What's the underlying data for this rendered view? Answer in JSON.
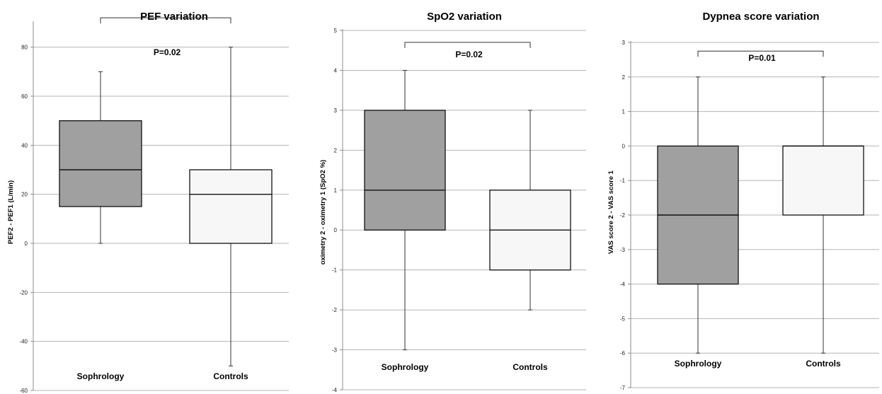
{
  "colors": {
    "sophrology": "#a0a0a0",
    "controls": "#f7f7f7",
    "grid": "#b5b5b5"
  },
  "chart_data": [
    {
      "type": "boxplot",
      "title": "PEF variation",
      "ylabel": "PEF2 - PEF1 (L/min)",
      "ylim": [
        -60,
        90
      ],
      "yticks": [
        -60,
        -40,
        -20,
        0,
        20,
        40,
        60,
        80
      ],
      "ytick_labels": [
        "-60",
        "-40",
        "-20",
        "0",
        "20",
        "40",
        "60",
        "80"
      ],
      "grid": true,
      "categories": [
        "Sophrology",
        "Controls"
      ],
      "boxes": [
        {
          "name": "Sophrology",
          "min": 0,
          "q1": 15,
          "median": 30,
          "q3": 50,
          "max": 70
        },
        {
          "name": "Controls",
          "min": -50,
          "q1": 0,
          "median": 20,
          "q3": 30,
          "max": 80
        }
      ],
      "annotation": {
        "text": "P=0.02",
        "bracket_level": 92
      }
    },
    {
      "type": "boxplot",
      "title": "SpO2 variation",
      "ylabel": "oximetry 2 - oximetry 1 (SpO2 %)",
      "ylim": [
        -4,
        5
      ],
      "yticks": [
        -4,
        -3,
        -2,
        -1,
        0,
        1,
        2,
        3,
        4,
        5
      ],
      "ytick_labels": [
        "-4",
        "-3",
        "-2",
        "-1",
        "0",
        "1",
        "2",
        "3",
        "4",
        "5"
      ],
      "grid": true,
      "categories": [
        "Sophrology",
        "Controls"
      ],
      "boxes": [
        {
          "name": "Sophrology",
          "min": -3,
          "q1": 0,
          "median": 1,
          "q3": 3,
          "max": 4
        },
        {
          "name": "Controls",
          "min": -2,
          "q1": -1,
          "median": 0,
          "q3": 1,
          "max": 3
        }
      ],
      "annotation": {
        "text": "P=0.02",
        "bracket_level": 4.7
      }
    },
    {
      "type": "boxplot",
      "title": "Dypnea score variation",
      "ylabel": "VAS score 2 - VAS score 1",
      "ylim": [
        -7,
        3
      ],
      "yticks": [
        -7,
        -6,
        -5,
        -4,
        -3,
        -2,
        -1,
        0,
        1,
        2,
        3
      ],
      "ytick_labels": [
        "-7",
        "-6",
        "-5",
        "-4",
        "-3",
        "-2",
        "-1",
        "0",
        "1",
        "2",
        "3"
      ],
      "grid": true,
      "categories": [
        "Sophrology",
        "Controls"
      ],
      "boxes": [
        {
          "name": "Sophrology",
          "min": -6,
          "q1": -4,
          "median": -2,
          "q3": 0,
          "max": 2
        },
        {
          "name": "Controls",
          "min": -6,
          "q1": -2,
          "median": 0,
          "q3": 0,
          "max": 2
        }
      ],
      "annotation": {
        "text": "P=0.01",
        "bracket_level": 2.75
      }
    }
  ]
}
